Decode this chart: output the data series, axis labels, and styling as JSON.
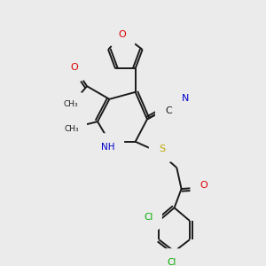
{
  "background_color": "#ebebeb",
  "bond_color": "#1a1a1a",
  "lw": 1.4,
  "label_colors": {
    "O": "#dd0000",
    "N": "#0000cc",
    "S": "#bbaa00",
    "Cl": "#00aa00",
    "C": "#1a1a1a",
    "H": "#1a1a1a"
  },
  "xlim": [
    0,
    10
  ],
  "ylim": [
    0,
    11
  ]
}
